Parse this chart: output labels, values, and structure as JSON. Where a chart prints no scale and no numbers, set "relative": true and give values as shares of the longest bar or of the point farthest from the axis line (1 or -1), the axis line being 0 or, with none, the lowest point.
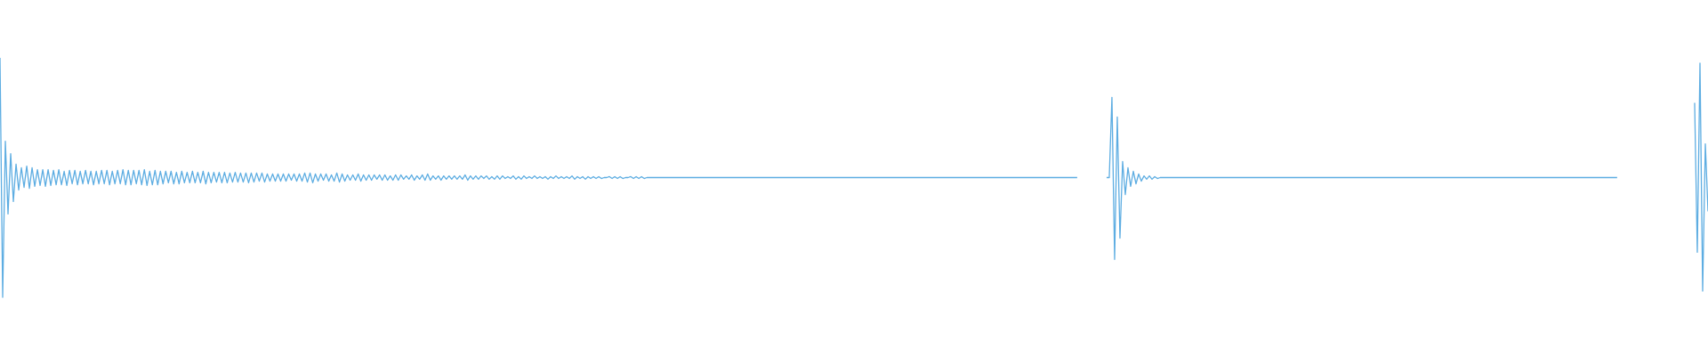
{
  "chart_data": {
    "type": "line",
    "relative": true,
    "categories": [
      null,
      null,
      null,
      null,
      null,
      null,
      null,
      null,
      null,
      null,
      null,
      null,
      null,
      null,
      null,
      null,
      null,
      null,
      null,
      null,
      null,
      null,
      null,
      null,
      null,
      null,
      null,
      null,
      null,
      null,
      null,
      null,
      null,
      null,
      null,
      null,
      null,
      null,
      null,
      null,
      null,
      null,
      null,
      null,
      null,
      null,
      null,
      null,
      null,
      null,
      null,
      null,
      null,
      null,
      null,
      null,
      null,
      null,
      null,
      null,
      null,
      null,
      null,
      null,
      null,
      null,
      null,
      null,
      null,
      null,
      null,
      null,
      null,
      null,
      null,
      null,
      null,
      null,
      null,
      null,
      null,
      null,
      null,
      null,
      null,
      null,
      null,
      null,
      null,
      null,
      null,
      null,
      null,
      null,
      null,
      null,
      null,
      null,
      null,
      null,
      null,
      null,
      null,
      null,
      null,
      null,
      null,
      null,
      null,
      null,
      null,
      null,
      null,
      null,
      null,
      null,
      null,
      null,
      null,
      null,
      null,
      null,
      null,
      null,
      null,
      null,
      null,
      null,
      null,
      null,
      null,
      null,
      null,
      null,
      null,
      null,
      null,
      null,
      null,
      null,
      null,
      null,
      null,
      null,
      null,
      null,
      null,
      null,
      null,
      null,
      null,
      null,
      null,
      null,
      null,
      null,
      null,
      null,
      null,
      null,
      null,
      null,
      null,
      null,
      null,
      null,
      null,
      null,
      null,
      null,
      null,
      null,
      null,
      null,
      null,
      null,
      null,
      null,
      null,
      null,
      null,
      null,
      null,
      null,
      null,
      null,
      null,
      null,
      null,
      null,
      null,
      null,
      null,
      null,
      null,
      null,
      null,
      null,
      null,
      null,
      null,
      null,
      null,
      null,
      null,
      null,
      null,
      null,
      null,
      null,
      null,
      null,
      null,
      null,
      null,
      null,
      null,
      null,
      null,
      null,
      null,
      null,
      null,
      null,
      null,
      null,
      null,
      null,
      null,
      null,
      null,
      null,
      null,
      null,
      null,
      null,
      null,
      null,
      null,
      null,
      null,
      null,
      null,
      null,
      null,
      null,
      null,
      null,
      null,
      null,
      null,
      null,
      null,
      null,
      null,
      null,
      null,
      null,
      null,
      null,
      null,
      null,
      null,
      null,
      null,
      null,
      null,
      null,
      null,
      null,
      null,
      null,
      null,
      null,
      null,
      null,
      null,
      null,
      null,
      null,
      null,
      null,
      null,
      null,
      null,
      null,
      null,
      null,
      null,
      null,
      null,
      null,
      null,
      null,
      null,
      null,
      null,
      null,
      null,
      null,
      null,
      null,
      null,
      null,
      null,
      null,
      null,
      null,
      null,
      null,
      null,
      null,
      null,
      null,
      null,
      null,
      null,
      null,
      null,
      null,
      null,
      null,
      null,
      null,
      null,
      null,
      null,
      null,
      null,
      null,
      null,
      null,
      null,
      null,
      null,
      null,
      null,
      null,
      null,
      null,
      null,
      null,
      null,
      null,
      null,
      null,
      null,
      null,
      null,
      null,
      null,
      null,
      null,
      null,
      null,
      null,
      null,
      null,
      null,
      null,
      null,
      null,
      null,
      null,
      null,
      null,
      null,
      null,
      null,
      null,
      null,
      null,
      null,
      null,
      null,
      null,
      null,
      null,
      null,
      null,
      null,
      null,
      null,
      null,
      null,
      null,
      null,
      null,
      null,
      null,
      null,
      null,
      null,
      null,
      null,
      null,
      null,
      null,
      null,
      null,
      null,
      null,
      null,
      null,
      null,
      null,
      null,
      null,
      null,
      null,
      null,
      null,
      null,
      null,
      null,
      null,
      null,
      null,
      null,
      null,
      null,
      null,
      null,
      null,
      null,
      null,
      null,
      null,
      null,
      null,
      null,
      null,
      null,
      null,
      null,
      null,
      null,
      null,
      null,
      null,
      null,
      null,
      null,
      null,
      null,
      null,
      null,
      null,
      null,
      null,
      null,
      null,
      null,
      null,
      null,
      null,
      null,
      null,
      null,
      null,
      null,
      null,
      null,
      null,
      null,
      null,
      null,
      null,
      null,
      null,
      null,
      null,
      null,
      null,
      null,
      null,
      null,
      null,
      null,
      null,
      null,
      null,
      null,
      null,
      null,
      null,
      null,
      null,
      null,
      null,
      null,
      null,
      null,
      null,
      null,
      null,
      null,
      null,
      null,
      null,
      null,
      null,
      null,
      null,
      null,
      null,
      null,
      null,
      null,
      null,
      null,
      null,
      null,
      null,
      null,
      null,
      null,
      null,
      null,
      null,
      null,
      null,
      null,
      null,
      null,
      null,
      null,
      null,
      null,
      null,
      null,
      null,
      null,
      null,
      null,
      null,
      null,
      null,
      null,
      null,
      null,
      null,
      null,
      null,
      null,
      null,
      null,
      null,
      null,
      null,
      null,
      null,
      null,
      null,
      null,
      null,
      null,
      null,
      null,
      null,
      null,
      null,
      null,
      null,
      null,
      null,
      null,
      null,
      null,
      null,
      null,
      null,
      null,
      null,
      null,
      null,
      null,
      null,
      null,
      null,
      null,
      null,
      null,
      null,
      null,
      null,
      null,
      null,
      null,
      null,
      null,
      null,
      null,
      null,
      null,
      null,
      null,
      null,
      null,
      null,
      null,
      null,
      null,
      null,
      null,
      null,
      null,
      null,
      null,
      null,
      null,
      null,
      null,
      null,
      null,
      null,
      null,
      null,
      null,
      null,
      null,
      null,
      null,
      null,
      null,
      null,
      null,
      null,
      null,
      null,
      null,
      null,
      null,
      null,
      null,
      null,
      null,
      null,
      null,
      null
    ],
    "series": [
      {
        "color": "#5dade2",
        "values": [
          1,
          0,
          0.652,
          0.348,
          0.6,
          0.4,
          0.556,
          0.448,
          0.541,
          0.459,
          0.548,
          0.455,
          0.541,
          0.463,
          0.533,
          0.467,
          0.533,
          0.463,
          0.533,
          0.467,
          0.53,
          0.47,
          0.533,
          0.47,
          0.526,
          0.467,
          0.53,
          0.474,
          0.53,
          0.47,
          0.526,
          0.474,
          0.53,
          0.474,
          0.526,
          0.47,
          0.526,
          0.474,
          0.53,
          0.474,
          0.53,
          0.47,
          0.526,
          0.474,
          0.53,
          0.474,
          0.533,
          0.47,
          0.53,
          0.47,
          0.53,
          0.474,
          0.53,
          0.47,
          0.533,
          0.467,
          0.526,
          0.47,
          0.53,
          0.47,
          0.526,
          0.474,
          0.526,
          0.478,
          0.526,
          0.474,
          0.522,
          0.474,
          0.526,
          0.478,
          0.522,
          0.478,
          0.526,
          0.478,
          0.522,
          0.478,
          0.526,
          0.474,
          0.522,
          0.478,
          0.522,
          0.481,
          0.522,
          0.478,
          0.522,
          0.478,
          0.519,
          0.481,
          0.522,
          0.481,
          0.519,
          0.481,
          0.519,
          0.478,
          0.519,
          0.481,
          0.519,
          0.485,
          0.519,
          0.481,
          0.515,
          0.485,
          0.515,
          0.485,
          0.515,
          0.485,
          0.515,
          0.485,
          0.515,
          0.489,
          0.515,
          0.485,
          0.515,
          0.485,
          0.519,
          0.481,
          0.519,
          0.478,
          0.515,
          0.485,
          0.515,
          0.489,
          0.515,
          0.485,
          0.511,
          0.485,
          0.519,
          0.481,
          0.515,
          0.485,
          0.511,
          0.489,
          0.511,
          0.489,
          0.515,
          0.485,
          0.511,
          0.489,
          0.511,
          0.489,
          0.511,
          0.493,
          0.511,
          0.489,
          0.511,
          0.489,
          0.507,
          0.489,
          0.511,
          0.489,
          0.511,
          0.493,
          0.507,
          0.493,
          0.511,
          0.489,
          0.507,
          0.493,
          0.511,
          0.489,
          0.515,
          0.489,
          0.507,
          0.493,
          0.507,
          0.489,
          0.507,
          0.493,
          0.507,
          0.493,
          0.507,
          0.493,
          0.507,
          0.493,
          0.511,
          0.489,
          0.507,
          0.493,
          0.507,
          0.493,
          0.507,
          0.496,
          0.507,
          0.493,
          0.504,
          0.493,
          0.507,
          0.493,
          0.507,
          0.496,
          0.504,
          0.496,
          0.507,
          0.493,
          0.504,
          0.493,
          0.507,
          0.496,
          0.504,
          0.496,
          0.507,
          0.496,
          0.504,
          0.496,
          0.504,
          0.493,
          0.504,
          0.496,
          0.507,
          0.496,
          0.504,
          0.496,
          0.504,
          0.496,
          0.507,
          0.493,
          0.504,
          0.496,
          0.504,
          0.493,
          0.504,
          0.496,
          0.504,
          0.496,
          0.504,
          0.496,
          0.5,
          0.5,
          0.504,
          0.496,
          0.504,
          0.496,
          0.504,
          0.496,
          0.5,
          0.5,
          0.504,
          0.496,
          0.504,
          0.496,
          0.504,
          0.496,
          0.5,
          0.5,
          0.5,
          0.5,
          0.5,
          0.5,
          0.5,
          0.5,
          0.5,
          0.5,
          0.5,
          0.5,
          0.5,
          0.5,
          0.5,
          0.5,
          0.5,
          0.5,
          0.5,
          0.5,
          0.5,
          0.5,
          0.5,
          0.5,
          0.5,
          0.5,
          0.5,
          0.5,
          0.5,
          0.5,
          0.5,
          0.5,
          0.5,
          0.5,
          0.5,
          0.5,
          0.5,
          0.5,
          0.5,
          0.5,
          0.5,
          0.5,
          0.5,
          0.5,
          0.5,
          0.5,
          0.5,
          0.5,
          0.5,
          0.5,
          0.5,
          0.5,
          0.5,
          0.5,
          0.5,
          0.5,
          0.5,
          0.5,
          0.5,
          0.5,
          0.5,
          0.5,
          0.5,
          0.5,
          0.5,
          0.5,
          0.5,
          0.5,
          0.5,
          0.5,
          0.5,
          0.5,
          0.5,
          0.5,
          0.5,
          0.5,
          0.5,
          0.5,
          0.5,
          0.5,
          0.5,
          0.5,
          0.5,
          0.5,
          0.5,
          0.5,
          0.5,
          0.5,
          0.5,
          0.5,
          0.5,
          0.5,
          0.5,
          0.5,
          0.5,
          0.5,
          0.5,
          0.5,
          0.5,
          0.5,
          0.5,
          0.5,
          0.5,
          0.5,
          0.5,
          0.5,
          0.5,
          0.5,
          0.5,
          0.5,
          0.5,
          0.5,
          0.5,
          0.5,
          0.5,
          0.5,
          0.5,
          0.5,
          0.5,
          0.5,
          0.5,
          0.5,
          0.5,
          0.5,
          0.5,
          0.5,
          0.5,
          0.5,
          0.5,
          0.5,
          0.5,
          0.5,
          0.5,
          0.5,
          0.5,
          0.5,
          0.5,
          0.5,
          0.5,
          0.5,
          0.5,
          0.5,
          0.5,
          0.5,
          0.5,
          0.5,
          0.5,
          0.5,
          0.5,
          0.5,
          0.5,
          0.5,
          0.5,
          0.5,
          0.5,
          0.5,
          0.5,
          0.5,
          0.5,
          0.5,
          0.5,
          0.5,
          null,
          null,
          null,
          null,
          null,
          null,
          null,
          null,
          null,
          null,
          null,
          null,
          null,
          null,
          null,
          null,
          null,
          null,
          null,
          null,
          null,
          null,
          null,
          null,
          null,
          null,
          null,
          null,
          null,
          null,
          null,
          null,
          null,
          null,
          null,
          null,
          null,
          null,
          null,
          null,
          null,
          null,
          null,
          null,
          null,
          null,
          null,
          null,
          null,
          null,
          null,
          null,
          null,
          null,
          null,
          null,
          null,
          null,
          null,
          null,
          null,
          null,
          null,
          null,
          null,
          null,
          null,
          null,
          null,
          null,
          null,
          null,
          null,
          null,
          null,
          null,
          null,
          null,
          null,
          null,
          null,
          null,
          null,
          null,
          null,
          null,
          null,
          null,
          null,
          null,
          null,
          null,
          null,
          null,
          null,
          null,
          null,
          null,
          null,
          null,
          null,
          null,
          null,
          null,
          null,
          null,
          null,
          null,
          null,
          null,
          null,
          null,
          null,
          null,
          null,
          null,
          null,
          null,
          null,
          null,
          null,
          null,
          null,
          null,
          null,
          null,
          null,
          null,
          null,
          null,
          null,
          null,
          null,
          null,
          null,
          null,
          null,
          null,
          null,
          null,
          null,
          null,
          null,
          null,
          null,
          null,
          null,
          null,
          null,
          null,
          null,
          null,
          null,
          null,
          null,
          null,
          null,
          null,
          null,
          null,
          null,
          null,
          null,
          null,
          null,
          null,
          null,
          null,
          null,
          null,
          null,
          null,
          null,
          null,
          null,
          null,
          null,
          null,
          null,
          null,
          null,
          null,
          null,
          null,
          null,
          null,
          null,
          null,
          null,
          null,
          null,
          null,
          null,
          null,
          null,
          null,
          null,
          null,
          null,
          null,
          null,
          null,
          null,
          null,
          null,
          null,
          null,
          null,
          null,
          null,
          null,
          null,
          null,
          null,
          null,
          null,
          null,
          null,
          null,
          null,
          null,
          null,
          null,
          null,
          null,
          null,
          null,
          null,
          null,
          null,
          null,
          null,
          null,
          null,
          null,
          null
        ]
      },
      {
        "color": "#5dade2",
        "values": [
          null,
          null,
          null,
          null,
          null,
          null,
          null,
          null,
          null,
          null,
          null,
          null,
          null,
          null,
          null,
          null,
          null,
          null,
          null,
          null,
          null,
          null,
          null,
          null,
          null,
          null,
          null,
          null,
          null,
          null,
          null,
          null,
          null,
          null,
          null,
          null,
          null,
          null,
          null,
          null,
          null,
          null,
          null,
          null,
          null,
          null,
          null,
          null,
          null,
          null,
          null,
          null,
          null,
          null,
          null,
          null,
          null,
          null,
          null,
          null,
          null,
          null,
          null,
          null,
          null,
          null,
          null,
          null,
          null,
          null,
          null,
          null,
          null,
          null,
          null,
          null,
          null,
          null,
          null,
          null,
          null,
          null,
          null,
          null,
          null,
          null,
          null,
          null,
          null,
          null,
          null,
          null,
          null,
          null,
          null,
          null,
          null,
          null,
          null,
          null,
          null,
          null,
          null,
          null,
          null,
          null,
          null,
          null,
          null,
          null,
          null,
          null,
          null,
          null,
          null,
          null,
          null,
          null,
          null,
          null,
          null,
          null,
          null,
          null,
          null,
          null,
          null,
          null,
          null,
          null,
          null,
          null,
          null,
          null,
          null,
          null,
          null,
          null,
          null,
          null,
          null,
          null,
          null,
          null,
          null,
          null,
          null,
          null,
          null,
          null,
          null,
          null,
          null,
          null,
          null,
          null,
          null,
          null,
          null,
          null,
          null,
          null,
          null,
          null,
          null,
          null,
          null,
          null,
          null,
          null,
          null,
          null,
          null,
          null,
          null,
          null,
          null,
          null,
          null,
          null,
          null,
          null,
          null,
          null,
          null,
          null,
          null,
          null,
          null,
          null,
          null,
          null,
          null,
          null,
          null,
          null,
          null,
          null,
          null,
          null,
          null,
          null,
          null,
          null,
          null,
          null,
          null,
          null,
          null,
          null,
          null,
          null,
          null,
          null,
          null,
          null,
          null,
          null,
          null,
          null,
          null,
          null,
          null,
          null,
          null,
          null,
          null,
          null,
          null,
          null,
          null,
          null,
          null,
          null,
          null,
          null,
          null,
          null,
          null,
          null,
          null,
          null,
          null,
          null,
          null,
          null,
          null,
          null,
          null,
          null,
          null,
          null,
          null,
          null,
          null,
          null,
          null,
          null,
          null,
          null,
          null,
          null,
          null,
          null,
          null,
          null,
          null,
          null,
          null,
          null,
          null,
          null,
          null,
          null,
          null,
          null,
          null,
          null,
          null,
          null,
          null,
          null,
          null,
          null,
          null,
          null,
          null,
          null,
          null,
          null,
          null,
          null,
          null,
          null,
          null,
          null,
          null,
          null,
          null,
          null,
          null,
          null,
          null,
          null,
          null,
          null,
          null,
          null,
          null,
          null,
          null,
          null,
          null,
          null,
          null,
          null,
          null,
          null,
          null,
          null,
          null,
          null,
          null,
          null,
          null,
          null,
          null,
          null,
          null,
          null,
          null,
          null,
          null,
          null,
          null,
          null,
          null,
          null,
          null,
          null,
          null,
          null,
          null,
          null,
          null,
          null,
          null,
          null,
          null,
          null,
          null,
          null,
          null,
          null,
          null,
          null,
          null,
          null,
          null,
          null,
          null,
          null,
          null,
          null,
          null,
          null,
          null,
          null,
          null,
          null,
          null,
          null,
          null,
          null,
          null,
          null,
          null,
          null,
          null,
          null,
          null,
          null,
          null,
          null,
          null,
          null,
          null,
          null,
          null,
          null,
          null,
          null,
          null,
          null,
          null,
          null,
          null,
          null,
          null,
          null,
          null,
          null,
          null,
          null,
          null,
          null,
          null,
          null,
          null,
          null,
          null,
          null,
          null,
          null,
          0.5,
          0.5,
          0.835,
          0.158,
          0.753,
          0.247,
          0.567,
          0.429,
          0.541,
          0.463,
          0.526,
          0.474,
          0.515,
          0.485,
          0.507,
          0.493,
          0.507,
          0.493,
          0.504,
          0.496,
          0.5,
          0.5,
          0.5,
          0.5,
          0.5,
          0.5,
          0.5,
          0.5,
          0.5,
          0.5,
          0.5,
          0.5,
          0.5,
          0.5,
          0.5,
          0.5,
          0.5,
          0.5,
          0.5,
          0.5,
          0.5,
          0.5,
          0.5,
          0.5,
          0.5,
          0.5,
          0.5,
          0.5,
          0.5,
          0.5,
          0.5,
          0.5,
          0.5,
          0.5,
          0.5,
          0.5,
          0.5,
          0.5,
          0.5,
          0.5,
          0.5,
          0.5,
          0.5,
          0.5,
          0.5,
          0.5,
          0.5,
          0.5,
          0.5,
          0.5,
          0.5,
          0.5,
          0.5,
          0.5,
          0.5,
          0.5,
          0.5,
          0.5,
          0.5,
          0.5,
          0.5,
          0.5,
          0.5,
          0.5,
          0.5,
          0.5,
          0.5,
          0.5,
          0.5,
          0.5,
          0.5,
          0.5,
          0.5,
          0.5,
          0.5,
          0.5,
          0.5,
          0.5,
          0.5,
          0.5,
          0.5,
          0.5,
          0.5,
          0.5,
          0.5,
          0.5,
          0.5,
          0.5,
          0.5,
          0.5,
          0.5,
          0.5,
          0.5,
          0.5,
          0.5,
          0.5,
          0.5,
          0.5,
          0.5,
          0.5,
          0.5,
          0.5,
          0.5,
          0.5,
          0.5,
          0.5,
          0.5,
          0.5,
          0.5,
          0.5,
          0.5,
          0.5,
          0.5,
          0.5,
          0.5,
          0.5,
          0.5,
          0.5,
          0.5,
          0.5,
          0.5,
          0.5,
          0.5,
          0.5,
          0.5,
          0.5,
          0.5,
          0.5,
          0.5,
          0.5,
          0.5,
          0.5,
          0.5,
          0.5,
          0.5,
          0.5,
          0.5,
          0.5,
          0.5,
          0.5,
          0.5,
          0.5,
          0.5,
          0.5,
          0.5,
          0.5,
          0.5,
          0.5,
          0.5,
          0.5,
          0.5,
          0.5,
          0.5,
          0.5,
          0.5,
          0.5,
          0.5,
          0.5,
          0.5,
          0.5,
          0.5,
          0.5,
          0.5,
          0.5,
          0.5,
          0.5,
          0.5,
          0.5,
          0.5,
          0.5,
          0.5,
          0.5,
          null,
          null,
          null,
          null,
          null,
          null,
          null,
          null,
          null,
          null,
          null,
          null,
          null,
          null,
          null,
          null,
          null,
          null,
          null,
          null,
          null,
          null,
          null,
          null,
          null,
          null,
          null,
          null,
          null,
          null,
          null,
          null,
          null,
          null
        ]
      },
      {
        "color": "#5dade2",
        "values": [
          null,
          null,
          null,
          null,
          null,
          null,
          null,
          null,
          null,
          null,
          null,
          null,
          null,
          null,
          null,
          null,
          null,
          null,
          null,
          null,
          null,
          null,
          null,
          null,
          null,
          null,
          null,
          null,
          null,
          null,
          null,
          null,
          null,
          null,
          null,
          null,
          null,
          null,
          null,
          null,
          null,
          null,
          null,
          null,
          null,
          null,
          null,
          null,
          null,
          null,
          null,
          null,
          null,
          null,
          null,
          null,
          null,
          null,
          null,
          null,
          null,
          null,
          null,
          null,
          null,
          null,
          null,
          null,
          null,
          null,
          null,
          null,
          null,
          null,
          null,
          null,
          null,
          null,
          null,
          null,
          null,
          null,
          null,
          null,
          null,
          null,
          null,
          null,
          null,
          null,
          null,
          null,
          null,
          null,
          null,
          null,
          null,
          null,
          null,
          null,
          null,
          null,
          null,
          null,
          null,
          null,
          null,
          null,
          null,
          null,
          null,
          null,
          null,
          null,
          null,
          null,
          null,
          null,
          null,
          null,
          null,
          null,
          null,
          null,
          null,
          null,
          null,
          null,
          null,
          null,
          null,
          null,
          null,
          null,
          null,
          null,
          null,
          null,
          null,
          null,
          null,
          null,
          null,
          null,
          null,
          null,
          null,
          null,
          null,
          null,
          null,
          null,
          null,
          null,
          null,
          null,
          null,
          null,
          null,
          null,
          null,
          null,
          null,
          null,
          null,
          null,
          null,
          null,
          null,
          null,
          null,
          null,
          null,
          null,
          null,
          null,
          null,
          null,
          null,
          null,
          null,
          null,
          null,
          null,
          null,
          null,
          null,
          null,
          null,
          null,
          null,
          null,
          null,
          null,
          null,
          null,
          null,
          null,
          null,
          null,
          null,
          null,
          null,
          null,
          null,
          null,
          null,
          null,
          null,
          null,
          null,
          null,
          null,
          null,
          null,
          null,
          null,
          null,
          null,
          null,
          null,
          null,
          null,
          null,
          null,
          null,
          null,
          null,
          null,
          null,
          null,
          null,
          null,
          null,
          null,
          null,
          null,
          null,
          null,
          null,
          null,
          null,
          null,
          null,
          null,
          null,
          null,
          null,
          null,
          null,
          null,
          null,
          null,
          null,
          null,
          null,
          null,
          null,
          null,
          null,
          null,
          null,
          null,
          null,
          null,
          null,
          null,
          null,
          null,
          null,
          null,
          null,
          null,
          null,
          null,
          null,
          null,
          null,
          null,
          null,
          null,
          null,
          null,
          null,
          null,
          null,
          null,
          null,
          null,
          null,
          null,
          null,
          null,
          null,
          null,
          null,
          null,
          null,
          null,
          null,
          null,
          null,
          null,
          null,
          null,
          null,
          null,
          null,
          null,
          null,
          null,
          null,
          null,
          null,
          null,
          null,
          null,
          null,
          null,
          null,
          null,
          null,
          null,
          null,
          null,
          null,
          null,
          null,
          null,
          null,
          null,
          null,
          null,
          null,
          null,
          null,
          null,
          null,
          null,
          null,
          null,
          null,
          null,
          null,
          null,
          null,
          null,
          null,
          null,
          null,
          null,
          null,
          null,
          null,
          null,
          null,
          null,
          null,
          null,
          null,
          null,
          null,
          null,
          null,
          null,
          null,
          null,
          null,
          null,
          null,
          null,
          null,
          null,
          null,
          null,
          null,
          null,
          null,
          null,
          null,
          null,
          null,
          null,
          null,
          null,
          null,
          null,
          null,
          null,
          null,
          null,
          null,
          null,
          null,
          null,
          null,
          null,
          null,
          null,
          null,
          null,
          null,
          null,
          null,
          null,
          null,
          null,
          null,
          null,
          null,
          null,
          null,
          null,
          null,
          null,
          null,
          null,
          null,
          null,
          null,
          null,
          null,
          null,
          null,
          null,
          null,
          null,
          null,
          null,
          null,
          null,
          null,
          null,
          null,
          null,
          null,
          null,
          null,
          null,
          null,
          null,
          null,
          null,
          null,
          null,
          null,
          null,
          null,
          null,
          null,
          null,
          null,
          null,
          null,
          null,
          null,
          null,
          null,
          null,
          null,
          null,
          null,
          null,
          null,
          null,
          null,
          null,
          null,
          null,
          null,
          null,
          null,
          null,
          null,
          null,
          null,
          null,
          null,
          null,
          null,
          null,
          null,
          null,
          null,
          null,
          null,
          null,
          null,
          null,
          null,
          null,
          null,
          null,
          null,
          null,
          null,
          null,
          null,
          null,
          null,
          null,
          null,
          null,
          null,
          null,
          null,
          null,
          null,
          null,
          null,
          null,
          null,
          null,
          null,
          null,
          null,
          null,
          null,
          null,
          null,
          null,
          null,
          null,
          null,
          null,
          null,
          null,
          null,
          null,
          null,
          null,
          null,
          null,
          null,
          null,
          null,
          null,
          null,
          null,
          null,
          null,
          null,
          null,
          null,
          null,
          null,
          null,
          null,
          null,
          null,
          null,
          null,
          null,
          null,
          null,
          null,
          null,
          null,
          null,
          null,
          null,
          null,
          null,
          null,
          null,
          null,
          null,
          null,
          null,
          null,
          null,
          null,
          null,
          null,
          null,
          null,
          null,
          null,
          null,
          null,
          null,
          null,
          null,
          null,
          null,
          null,
          null,
          null,
          null,
          null,
          null,
          null,
          null,
          null,
          null,
          null,
          null,
          null,
          null,
          null,
          null,
          null,
          null,
          null,
          null,
          null,
          null,
          null,
          null,
          null,
          null,
          null,
          null,
          null,
          null,
          null,
          null,
          null,
          null,
          null,
          null,
          null,
          null,
          null,
          null,
          null,
          null,
          null,
          null,
          null,
          null,
          null,
          null,
          null,
          0.812,
          0.188,
          0.978,
          0.026,
          0.641,
          0.359
        ]
      }
    ]
  }
}
